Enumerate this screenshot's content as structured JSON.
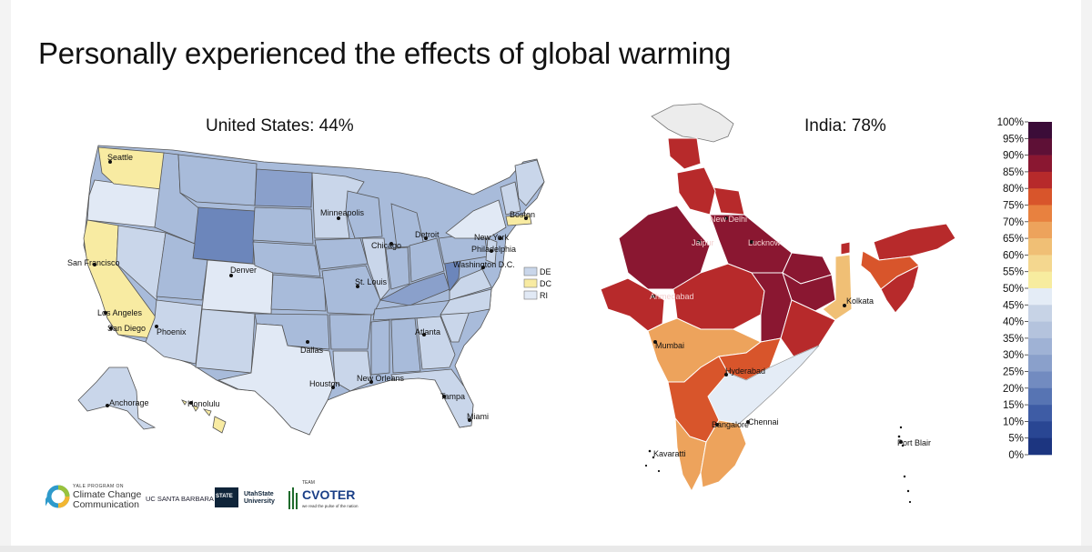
{
  "title": "Personally experienced the effects of global warming",
  "us": {
    "heading": "United States: 44%",
    "cities": [
      "Seattle",
      "San Francisco",
      "Los Angeles",
      "San Diego",
      "Phoenix",
      "Denver",
      "Dallas",
      "Houston",
      "Minneapolis",
      "Chicago",
      "St. Louis",
      "Detroit",
      "Boston",
      "New York",
      "Philadelphia",
      "Washington D.C.",
      "Atlanta",
      "New Orleans",
      "Tampa",
      "Miami",
      "Anchorage",
      "Honolulu"
    ],
    "legend": [
      "DE",
      "DC",
      "RI"
    ]
  },
  "india": {
    "heading": "India: 78%",
    "cities": [
      "New Delhi",
      "Jaipur",
      "Lucknow",
      "Ahmedabad",
      "Kolkata",
      "Mumbai",
      "Hyderabad",
      "Bangalore",
      "Chennai",
      "Kavaratti",
      "Port Blair"
    ]
  },
  "scale": {
    "ticks": [
      "100%",
      "95%",
      "90%",
      "85%",
      "80%",
      "75%",
      "70%",
      "65%",
      "60%",
      "55%",
      "50%",
      "45%",
      "40%",
      "35%",
      "30%",
      "25%",
      "20%",
      "15%",
      "10%",
      "5%",
      "0%"
    ],
    "colors": [
      "#3b0c38",
      "#5e1036",
      "#8a1731",
      "#b72a2b",
      "#d8552b",
      "#e8813f",
      "#eda35c",
      "#f0bf75",
      "#f4d78f",
      "#f7ec9f",
      "#e4ecf6",
      "#c7d3e6",
      "#b4c3dd",
      "#9fb2d5",
      "#8aa0cb",
      "#728bc0",
      "#5774b3",
      "#3e5ca5",
      "#294693",
      "#1c3580"
    ]
  },
  "logos": {
    "yale_small": "YALE PROGRAM ON",
    "yale_big": "Climate Change Communication",
    "ucsb": "UC SANTA BARBARA",
    "usu": "UtahState University",
    "usu_mark": "STATE",
    "cvoter_small": "TEAM",
    "cvoter": "CVOTER",
    "cvoter_tag": "we read the pulse of the nation"
  }
}
